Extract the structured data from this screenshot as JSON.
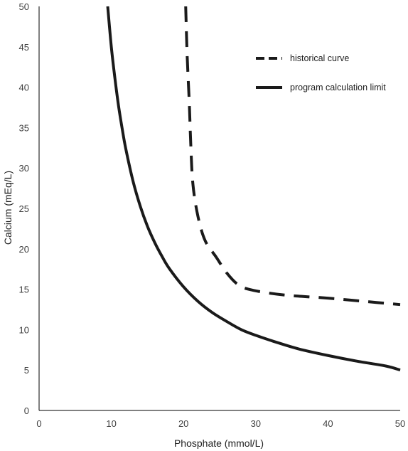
{
  "chart_data": {
    "type": "line",
    "xlabel": "Phosphate (mmol/L)",
    "ylabel": "Calcium (mEq/L)",
    "xlim": [
      0,
      50
    ],
    "ylim": [
      0,
      50
    ],
    "xticks": [
      0,
      10,
      20,
      30,
      40,
      50
    ],
    "yticks": [
      0,
      5,
      10,
      15,
      20,
      25,
      30,
      35,
      40,
      45,
      50
    ],
    "grid": false,
    "legend_position": "top-right",
    "series": [
      {
        "name": "historical curve",
        "style": "dashed",
        "color": "#1a1a1a",
        "x": [
          20.3,
          20.5,
          20.8,
          21.0,
          21.3,
          22.0,
          23.0,
          24.5,
          26.0,
          27.5,
          29.0,
          32.0,
          35.0,
          40.0,
          45.0,
          50.0
        ],
        "y": [
          50.0,
          44.0,
          38.0,
          33.0,
          28.0,
          24.0,
          21.0,
          19.0,
          17.0,
          15.6,
          15.0,
          14.5,
          14.2,
          13.9,
          13.5,
          13.1
        ]
      },
      {
        "name": "program calculation limit",
        "style": "solid",
        "color": "#1a1a1a",
        "x": [
          9.5,
          10.0,
          10.5,
          11.0,
          11.5,
          12.0,
          13.0,
          14.0,
          15.0,
          16.0,
          17.0,
          18.0,
          20.0,
          22.0,
          24.0,
          26.0,
          28.0,
          30.0,
          33.0,
          36.0,
          40.0,
          44.0,
          48.0,
          50.0
        ],
        "y": [
          50.0,
          45.0,
          41.1,
          37.7,
          34.9,
          32.4,
          28.4,
          25.3,
          22.8,
          20.8,
          19.1,
          17.6,
          15.3,
          13.5,
          12.1,
          11.0,
          10.0,
          9.3,
          8.4,
          7.6,
          6.8,
          6.1,
          5.5,
          5.0
        ]
      }
    ]
  }
}
